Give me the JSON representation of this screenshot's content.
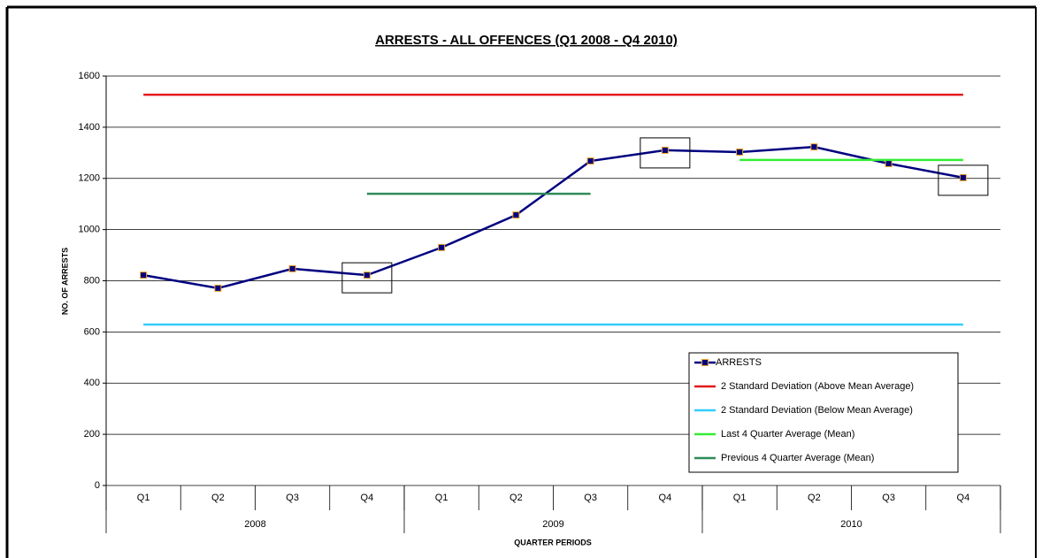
{
  "chart_data": {
    "type": "line",
    "title": "ARRESTS - ALL OFFENCES (Q1 2008 - Q4 2010)",
    "y_label": "NO. OF ARRESTS",
    "x_label": "QUARTER PERIODS",
    "categories": [
      "Q1",
      "Q2",
      "Q3",
      "Q4",
      "Q1",
      "Q2",
      "Q3",
      "Q4",
      "Q1",
      "Q2",
      "Q3",
      "Q4"
    ],
    "category_groups": [
      {
        "label": "2008",
        "size": 4
      },
      {
        "label": "2009",
        "size": 4
      },
      {
        "label": "2010",
        "size": 4
      }
    ],
    "series": [
      {
        "name": "ARRESTS",
        "color": "#000080",
        "marker": "square",
        "marker_edge": "#f5a623",
        "values": [
          822,
          771,
          847,
          822,
          930,
          1057,
          1268,
          1310,
          1303,
          1323,
          1258,
          1203
        ]
      },
      {
        "name": "2 Standard Deviation (Above Mean Average)",
        "color": "#e31a1c",
        "values": [
          1527,
          1527,
          1527,
          1527,
          1527,
          1527,
          1527,
          1527,
          1527,
          1527,
          1527,
          1527
        ]
      },
      {
        "name": "2 Standard Deviation (Below Mean Average)",
        "color": "#33ccff",
        "values": [
          629,
          629,
          629,
          629,
          629,
          629,
          629,
          629,
          629,
          629,
          629,
          629
        ]
      },
      {
        "name": "Last 4 Quarter Average (Mean)",
        "color": "#33ee33",
        "values": [
          null,
          null,
          null,
          null,
          null,
          null,
          null,
          null,
          1272,
          1272,
          1272,
          1272
        ]
      },
      {
        "name": "Previous 4 Quarter Average (Mean)",
        "color": "#2e8b57",
        "values": [
          null,
          null,
          null,
          1140,
          1140,
          1140,
          1140,
          null,
          null,
          null,
          null,
          null
        ]
      }
    ],
    "ylim": [
      0,
      1600
    ],
    "yticks": [
      0,
      200,
      400,
      600,
      800,
      1000,
      1200,
      1400,
      1600
    ],
    "grid": true,
    "legend": "lower right",
    "highlighted": [
      3,
      7,
      11
    ]
  }
}
